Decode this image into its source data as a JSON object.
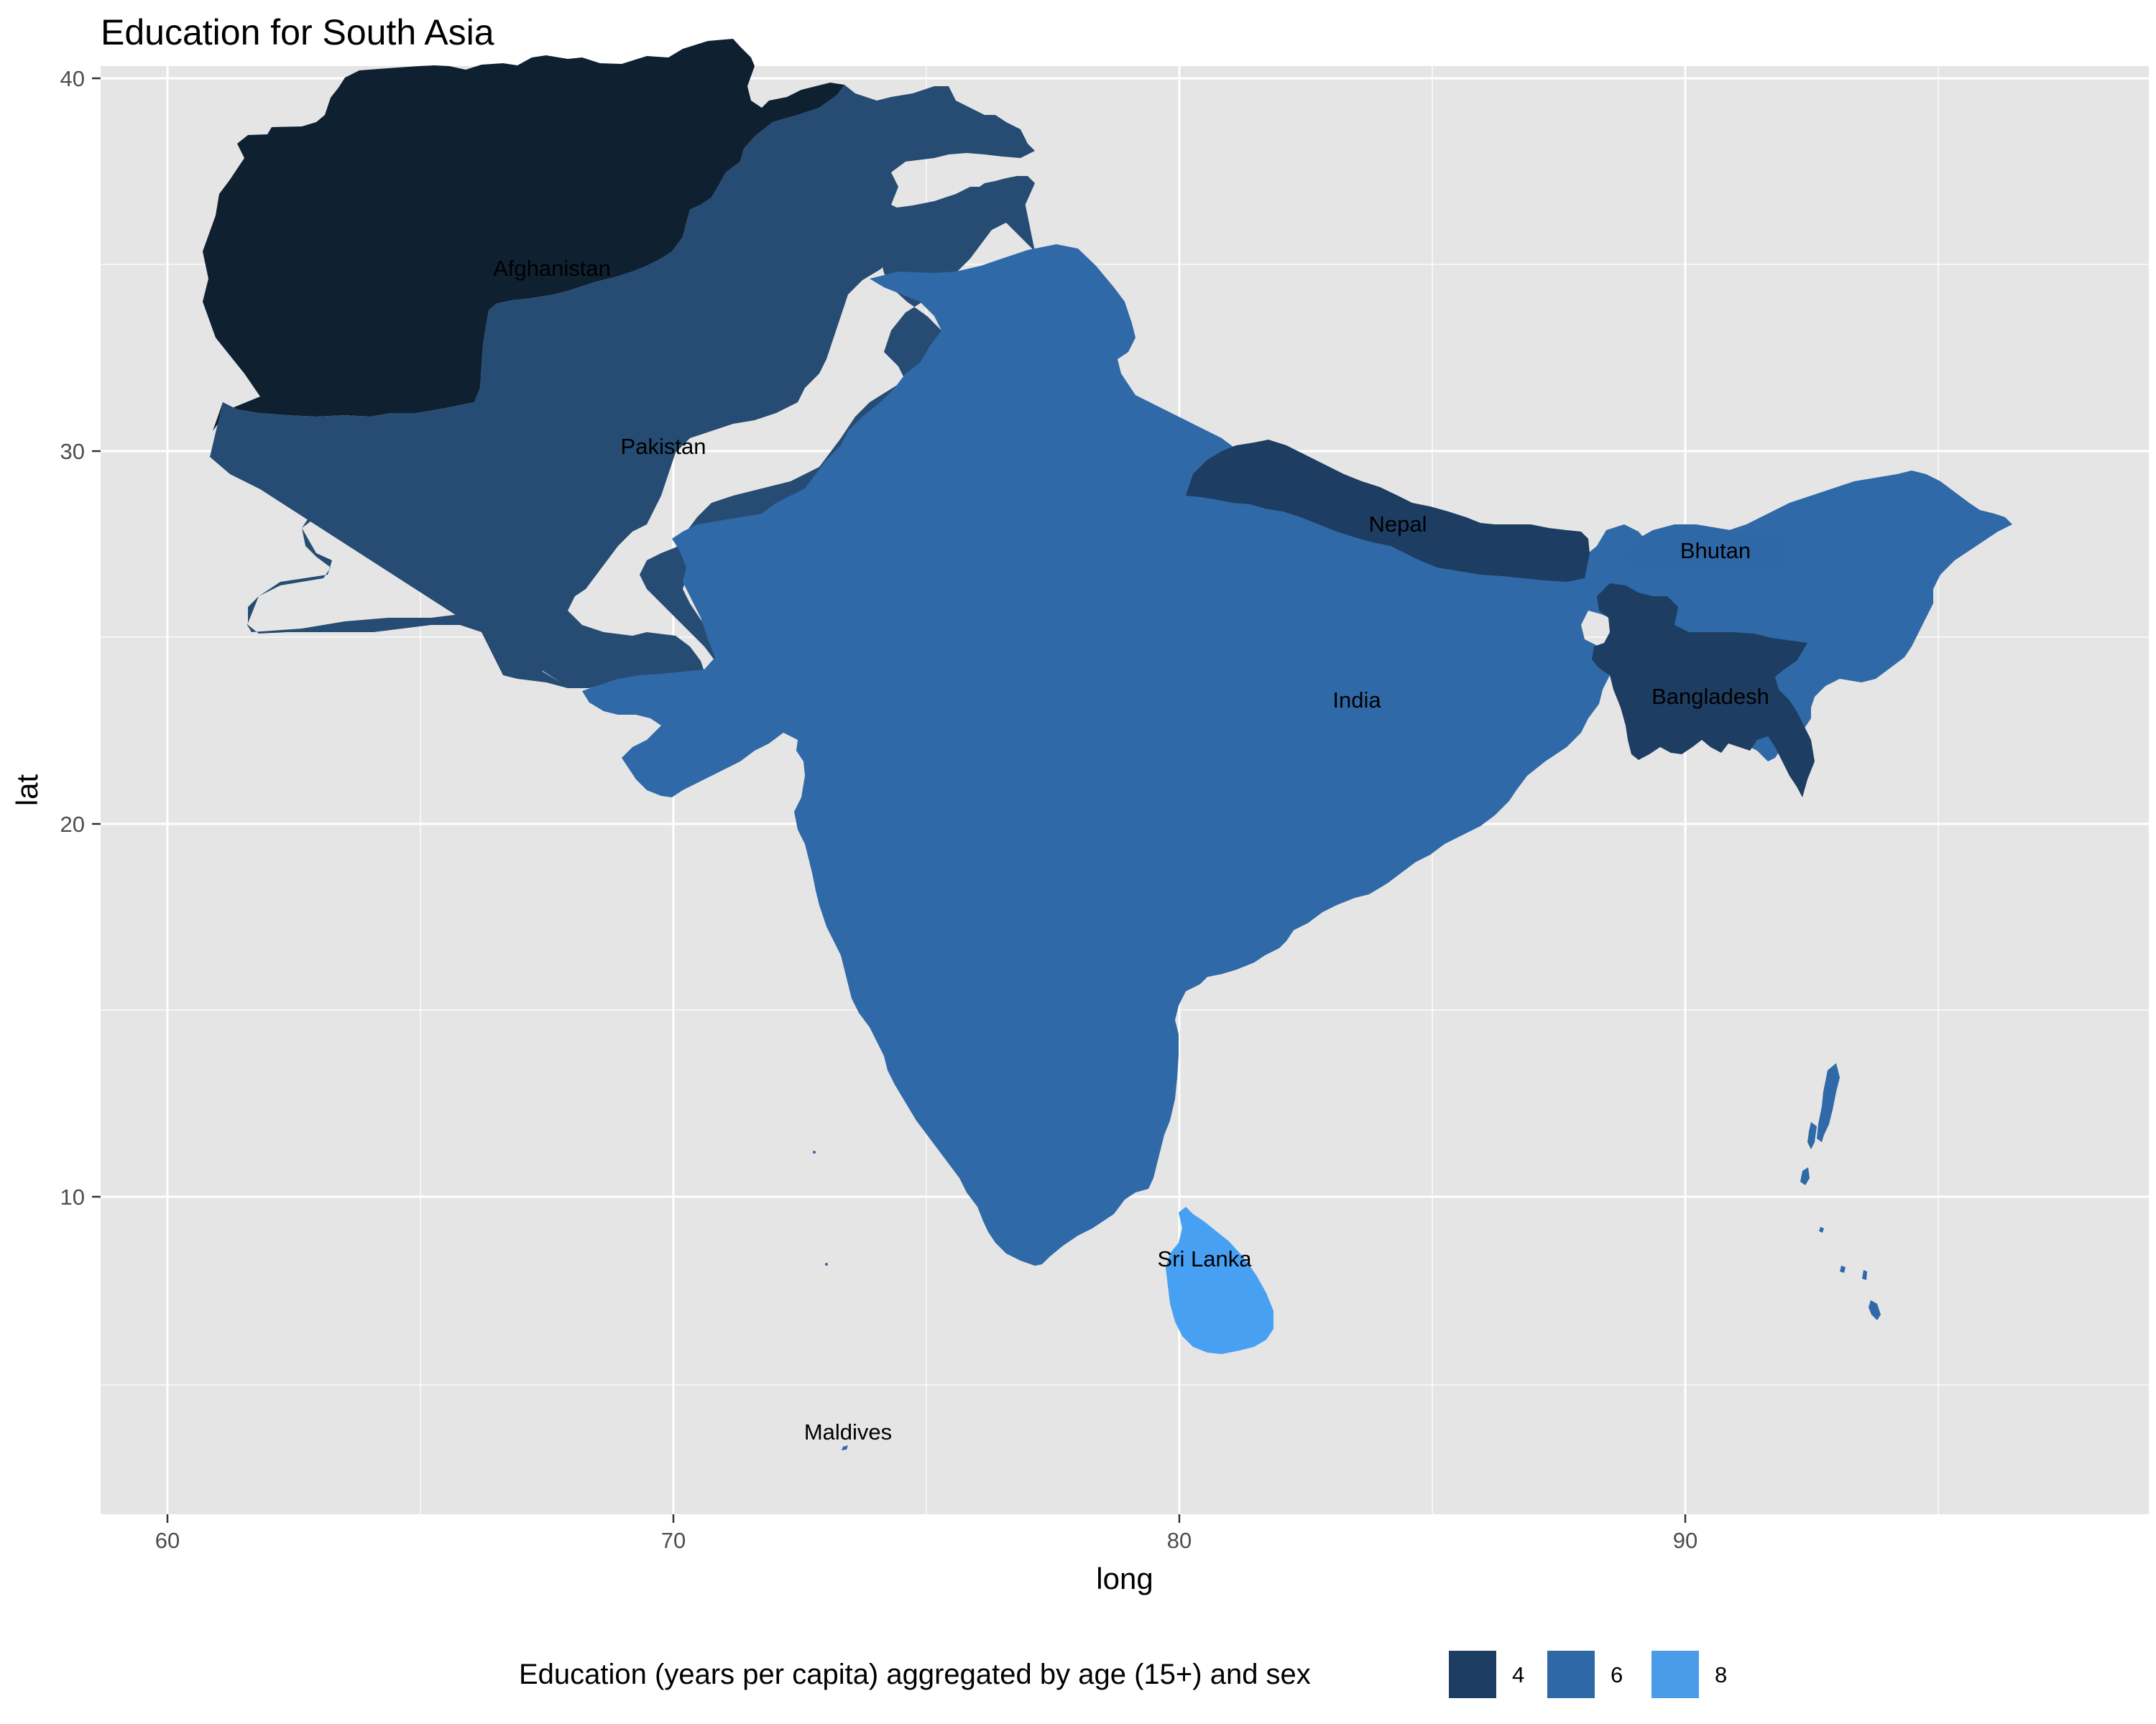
{
  "title": "Education for South Asia",
  "axes": {
    "x_label": "long",
    "y_label": "lat",
    "x_ticks": [
      "60",
      "70",
      "80",
      "90"
    ],
    "y_ticks": [
      "10",
      "20",
      "30",
      "40"
    ],
    "xlim": [
      58.6,
      98.5
    ],
    "ylim": [
      1.5,
      40.5
    ],
    "grid": true
  },
  "colors": {
    "panel": "#e5e5e5",
    "grid": "#ffffff",
    "level_4": "#132b43",
    "level_6": "#2f68a7",
    "level_8": "#56b1f7",
    "afghanistan": "#0f2031",
    "pakistan": "#264c73",
    "india": "#3069a7",
    "nepal": "#1d3d62",
    "bhutan": "#2f68a7",
    "bangladesh": "#1d3d62",
    "sri_lanka": "#48a0f2",
    "maldives": "#3069a7"
  },
  "countries": [
    {
      "name": "Afghanistan",
      "label": "Afghanistan"
    },
    {
      "name": "Pakistan",
      "label": "Pakistan"
    },
    {
      "name": "India",
      "label": "India"
    },
    {
      "name": "Nepal",
      "label": "Nepal"
    },
    {
      "name": "Bhutan",
      "label": "Bhutan"
    },
    {
      "name": "Bangladesh",
      "label": "Bangladesh"
    },
    {
      "name": "Sri Lanka",
      "label": "Sri Lanka"
    },
    {
      "name": "Maldives",
      "label": "Maldives"
    }
  ],
  "legend": {
    "title": "Education (years per capita) aggregated by age (15+) and sex",
    "items": [
      {
        "label": "4",
        "color": "#1d3d62"
      },
      {
        "label": "6",
        "color": "#2f68a7"
      },
      {
        "label": "8",
        "color": "#4b9ce8"
      }
    ]
  }
}
